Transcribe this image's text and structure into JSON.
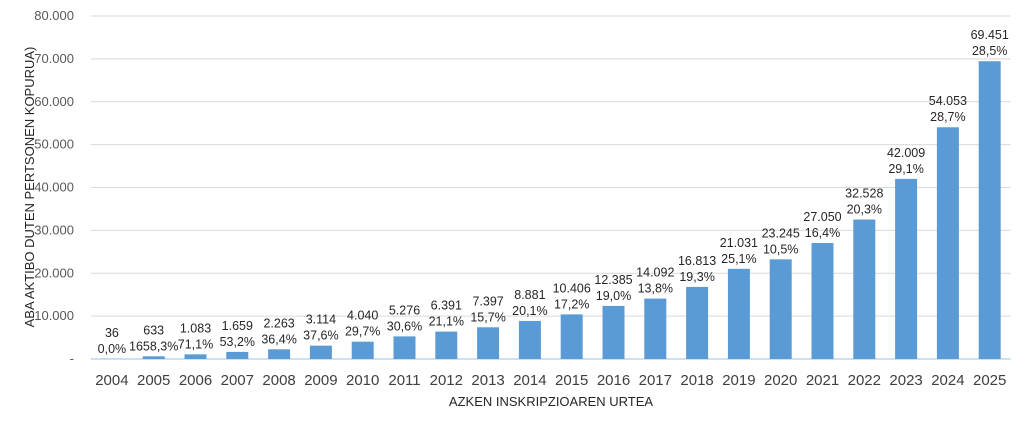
{
  "chart_data": {
    "type": "bar",
    "title": "",
    "xlabel": "AZKEN INSKRIPZIOAREN URTEA",
    "ylabel": "ABA AKTIBO DUTEN PERTSONEN KOPURUA)",
    "ylim": [
      0,
      80000
    ],
    "yticks": [
      0,
      10000,
      20000,
      30000,
      40000,
      50000,
      60000,
      70000,
      80000
    ],
    "ytick_labels": [
      "-",
      "10.000",
      "20.000",
      "30.000",
      "40.000",
      "50.000",
      "60.000",
      "70.000",
      "80.000"
    ],
    "grid": true,
    "color": "#5B9BD5",
    "categories": [
      "2004",
      "2005",
      "2006",
      "2007",
      "2008",
      "2009",
      "2010",
      "2011",
      "2012",
      "2013",
      "2014",
      "2015",
      "2016",
      "2017",
      "2018",
      "2019",
      "2020",
      "2021",
      "2022",
      "2023",
      "2024",
      "2025"
    ],
    "values": [
      36,
      633,
      1083,
      1659,
      2263,
      3114,
      4040,
      5276,
      6391,
      7397,
      8881,
      10406,
      12385,
      14092,
      16813,
      21031,
      23245,
      27050,
      32528,
      42009,
      54053,
      69451
    ],
    "value_labels": [
      "36",
      "633",
      "1.083",
      "1.659",
      "2.263",
      "3.114",
      "4.040",
      "5.276",
      "6.391",
      "7.397",
      "8.881",
      "10.406",
      "12.385",
      "14.092",
      "16.813",
      "21.031",
      "23.245",
      "27.050",
      "32.528",
      "42.009",
      "54.053",
      "69.451"
    ],
    "growth_labels": [
      "0,0%",
      "1658,3%",
      "71,1%",
      "53,2%",
      "36,4%",
      "37,6%",
      "29,7%",
      "30,6%",
      "21,1%",
      "15,7%",
      "20,1%",
      "17,2%",
      "19,0%",
      "13,8%",
      "19,3%",
      "25,1%",
      "10,5%",
      "16,4%",
      "20,3%",
      "29,1%",
      "28,7%",
      "28,5%"
    ]
  }
}
